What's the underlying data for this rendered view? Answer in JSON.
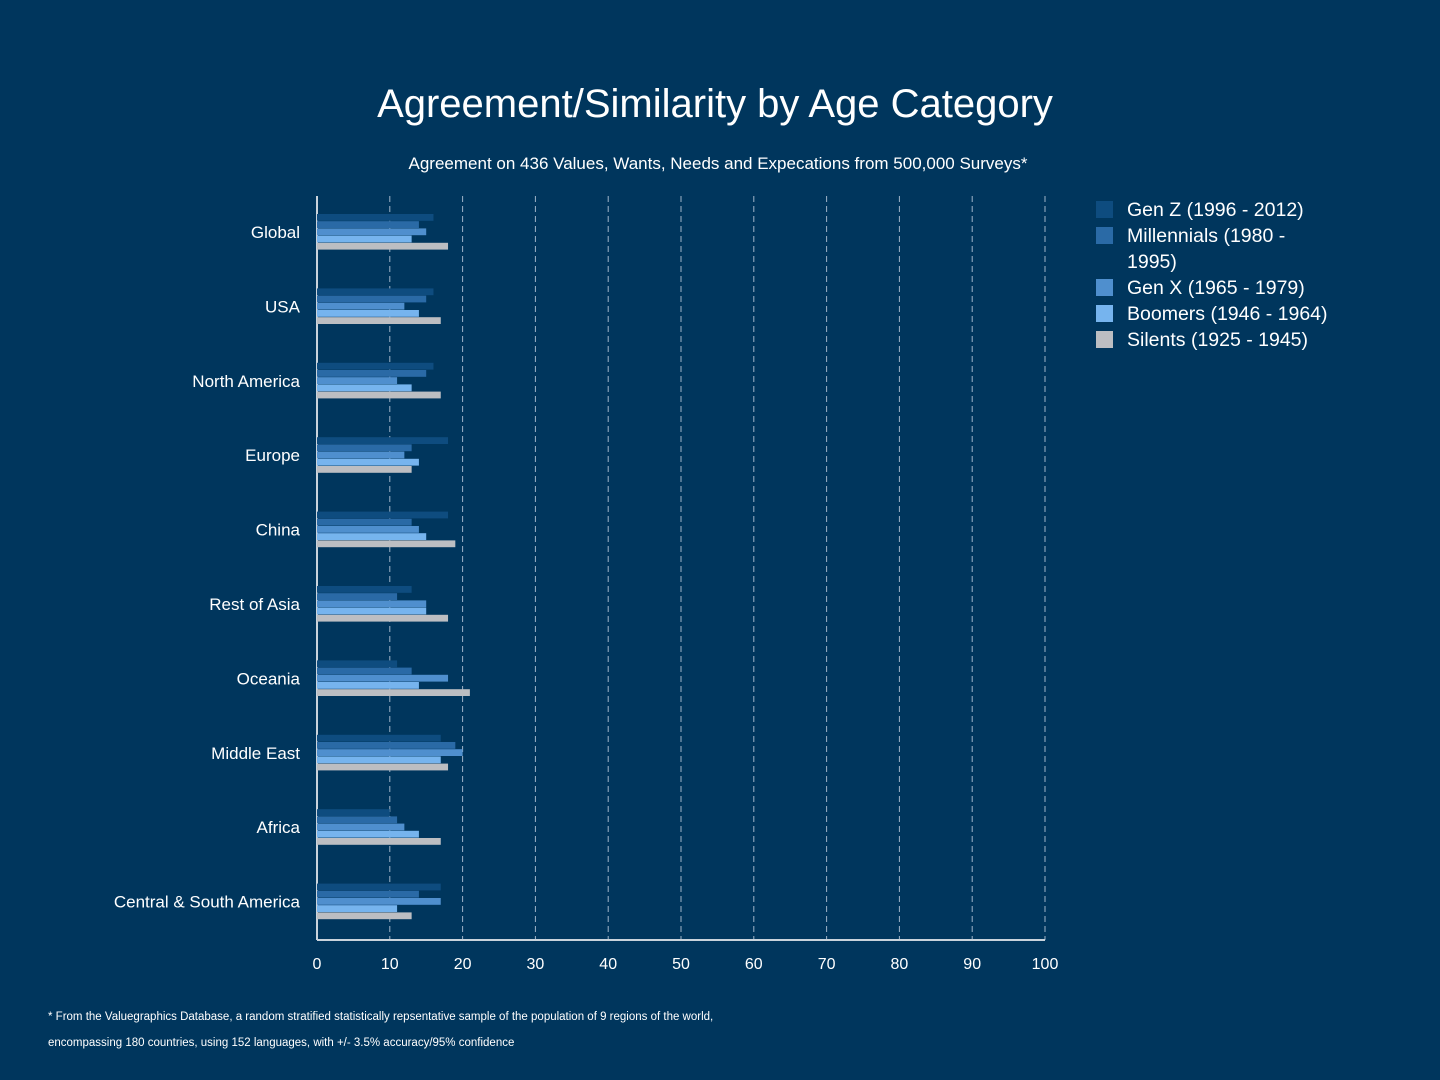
{
  "header": {
    "title": "Agreement/Similarity by Age Category",
    "subtitle": "Agreement on 436 Values, Wants, Needs and Expecations from 500,000 Surveys*"
  },
  "footnote": {
    "line1": "* From the Valuegraphics Database, a random stratified statistically repsentative sample of the population of 9 regions of the world,",
    "line2": "encompassing 180 countries, using 152 languages, with +/- 3.5% accuracy/95% confidence"
  },
  "legend": {
    "items": [
      {
        "label": "Gen Z (1996 - 2012)",
        "color": "#0e4c7f"
      },
      {
        "label": "Millennials (1980 - 1995)",
        "color": "#2a6aa6"
      },
      {
        "label": "Gen X (1965 - 1979)",
        "color": "#4f8fce"
      },
      {
        "label": "Boomers (1946 - 1964)",
        "color": "#76b4ee"
      },
      {
        "label": "Silents (1925 - 1945)",
        "color": "#bcbec2"
      }
    ]
  },
  "chart_data": {
    "type": "bar",
    "orientation": "horizontal",
    "title": "Agreement/Similarity by Age Category",
    "subtitle": "Agreement on 436 Values, Wants, Needs and Expecations from 500,000 Surveys*",
    "xlim": [
      0,
      100
    ],
    "x_ticks": [
      0,
      10,
      20,
      30,
      40,
      50,
      60,
      70,
      80,
      90,
      100
    ],
    "grid": "vertical dashed",
    "legend_position": "right",
    "categories": [
      "Global",
      "USA",
      "North America",
      "Europe",
      "China",
      "Rest of Asia",
      "Oceania",
      "Middle East",
      "Africa",
      "Central & South America"
    ],
    "series": [
      {
        "name": "Gen Z (1996 - 2012)",
        "color": "#0e4c7f",
        "values": [
          16,
          16,
          16,
          18,
          18,
          13,
          11,
          17,
          10,
          17
        ]
      },
      {
        "name": "Millennials (1980 - 1995)",
        "color": "#2a6aa6",
        "values": [
          14,
          15,
          15,
          13,
          13,
          11,
          13,
          19,
          11,
          14
        ]
      },
      {
        "name": "Gen X (1965 - 1979)",
        "color": "#4f8fce",
        "values": [
          15,
          12,
          11,
          12,
          14,
          15,
          18,
          20,
          12,
          17
        ]
      },
      {
        "name": "Boomers (1946 - 1964)",
        "color": "#76b4ee",
        "values": [
          13,
          14,
          13,
          14,
          15,
          15,
          14,
          17,
          14,
          11
        ]
      },
      {
        "name": "Silents (1925 - 1945)",
        "color": "#bcbec2",
        "values": [
          18,
          17,
          17,
          13,
          19,
          18,
          21,
          18,
          17,
          13
        ]
      }
    ]
  }
}
